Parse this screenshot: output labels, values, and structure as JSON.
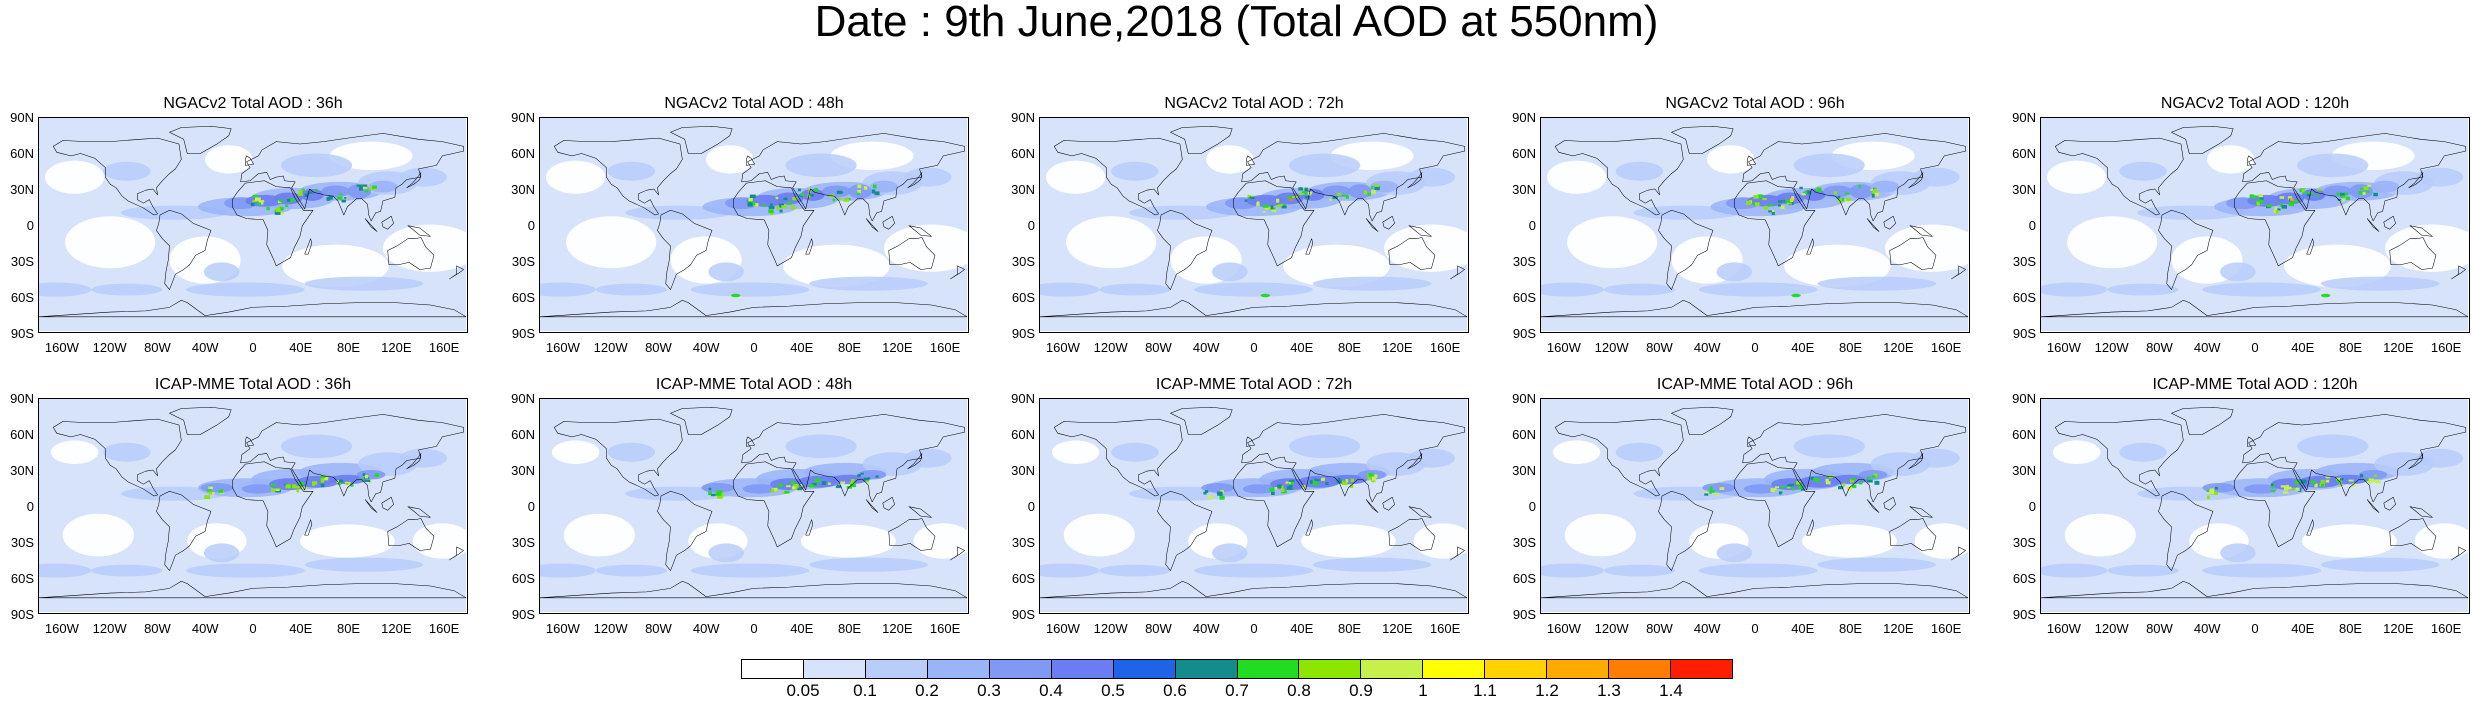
{
  "title": "Date : 9th June,2018 (Total AOD at 550nm)",
  "rows": [
    {
      "model": "NGACv2",
      "panels": [
        {
          "title": "NGACv2 Total AOD : 36h"
        },
        {
          "title": "NGACv2 Total AOD : 48h"
        },
        {
          "title": "NGACv2 Total AOD : 72h"
        },
        {
          "title": "NGACv2 Total AOD : 96h"
        },
        {
          "title": "NGACv2 Total AOD : 120h"
        }
      ]
    },
    {
      "model": "ICAP-MME",
      "panels": [
        {
          "title": "ICAP-MME Total AOD : 36h"
        },
        {
          "title": "ICAP-MME Total AOD : 48h"
        },
        {
          "title": "ICAP-MME Total AOD : 72h"
        },
        {
          "title": "ICAP-MME Total AOD : 96h"
        },
        {
          "title": "ICAP-MME Total AOD : 120h"
        }
      ]
    }
  ],
  "lat_ticks": [
    "90N",
    "60N",
    "30N",
    "0",
    "30S",
    "60S",
    "90S"
  ],
  "lon_ticks": [
    "160W",
    "120W",
    "80W",
    "40W",
    "0",
    "40E",
    "80E",
    "120E",
    "160E"
  ],
  "colorbar": {
    "labels": [
      "0.05",
      "0.1",
      "0.2",
      "0.3",
      "0.4",
      "0.5",
      "0.6",
      "0.7",
      "0.8",
      "0.9",
      "1",
      "1.1",
      "1.2",
      "1.3",
      "1.4"
    ],
    "colors": [
      "#ffffff",
      "#d7e3fb",
      "#b8cdfa",
      "#9ab4f8",
      "#8099f5",
      "#6a7df2",
      "#1e64e6",
      "#128c8c",
      "#22dc22",
      "#8ce600",
      "#c8f04b",
      "#ffff00",
      "#ffd200",
      "#ffaa00",
      "#ff7d00",
      "#ff1e00"
    ]
  },
  "chart_data": {
    "type": "heatmap",
    "title": "Date : 9th June,2018 (Total AOD at 550nm)",
    "variable": "Total AOD at 550nm",
    "date": "9th June,2018",
    "forecast_hours": [
      "36h",
      "48h",
      "72h",
      "96h",
      "120h"
    ],
    "models": [
      "NGACv2",
      "ICAP-MME"
    ],
    "lon_range": [
      "180W",
      "180E"
    ],
    "lat_range": [
      "90S",
      "90N"
    ],
    "levels": [
      0.05,
      0.1,
      0.2,
      0.3,
      0.4,
      0.5,
      0.6,
      0.7,
      0.8,
      0.9,
      1,
      1.1,
      1.2,
      1.3,
      1.4
    ]
  }
}
